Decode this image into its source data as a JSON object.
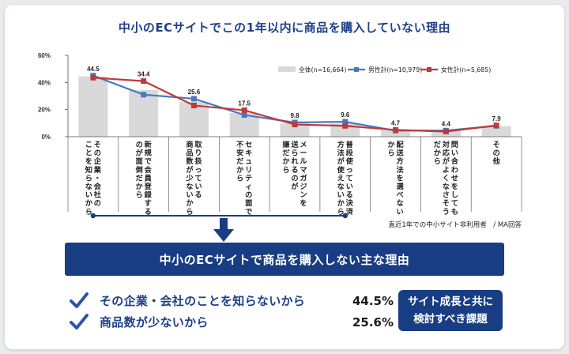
{
  "chart_data": {
    "type": "bar",
    "title": "中小のECサイトでこの1年以内に商品を購入していない理由",
    "y_ticks": [
      "60%",
      "40%",
      "20%",
      "0%"
    ],
    "ylim": [
      0,
      60
    ],
    "categories": [
      "その企業・会社のことを知らないから",
      "新規で会員登録するのが面倒だから",
      "取り扱っている商品数が少ないから",
      "セキュリティの面で不安だから",
      "メールマガジンを送られるのが嫌だから",
      "普段使っている決済方法が使えないから",
      "配送方法を選べないから",
      "問い合わせをしても対応がよくなさそうだから",
      "その他"
    ],
    "category_label_columns": [
      [
        "その企業・会社の",
        "ことを知らないから"
      ],
      [
        "新規で会員登録する",
        "のが面倒だから"
      ],
      [
        "取り扱っている",
        "商品数が少ないから"
      ],
      [
        "セキュリティの面で",
        "不安だから"
      ],
      [
        "メールマガジンを",
        "送られるのが",
        "嫌だから"
      ],
      [
        "普段使っている決済",
        "方法が使えないから"
      ],
      [
        "配送方法を選べない",
        "から"
      ],
      [
        "問い合わせをしても",
        "対応がよくなさそう",
        "だから"
      ],
      [
        "その他"
      ]
    ],
    "series": [
      {
        "name": "全体(n=16,664)",
        "type": "bar",
        "color": "#d9d9d9",
        "values": [
          44.5,
          34.4,
          25.6,
          17.5,
          9.8,
          9.6,
          4.7,
          4.4,
          7.9
        ]
      },
      {
        "name": "男性計(n=10,979)",
        "type": "line",
        "color": "#4a78c2",
        "values": [
          45.0,
          31.0,
          28.0,
          16.0,
          10.5,
          11.0,
          4.5,
          4.5,
          8.0
        ]
      },
      {
        "name": "女性計(n=5,685)",
        "type": "line",
        "color": "#c0393b",
        "values": [
          43.5,
          41.0,
          23.0,
          19.5,
          9.0,
          8.0,
          5.0,
          3.8,
          8.3
        ]
      }
    ],
    "data_labels": [
      "44.5",
      "34.4",
      "25.6",
      "17.5",
      "9.8",
      "9.6",
      "4.7",
      "4.4",
      "7.9"
    ],
    "legend_position": "top-right",
    "note": "直近1年での中小サイト非利用者　/ MA回答"
  },
  "summary": {
    "banner": "中小のECサイトで商品を購入しない主な理由",
    "reasons": [
      {
        "text": "その企業・会社のことを知らないから",
        "value": "44.5%"
      },
      {
        "text": "商品数が少ないから",
        "value": "25.6%"
      }
    ],
    "callout_line1": "サイト成長と共に",
    "callout_line2": "検討すべき課題"
  },
  "colors": {
    "navy": "#183d82",
    "title_blue": "#1f3f8c",
    "check_blue": "#2b56a8"
  }
}
